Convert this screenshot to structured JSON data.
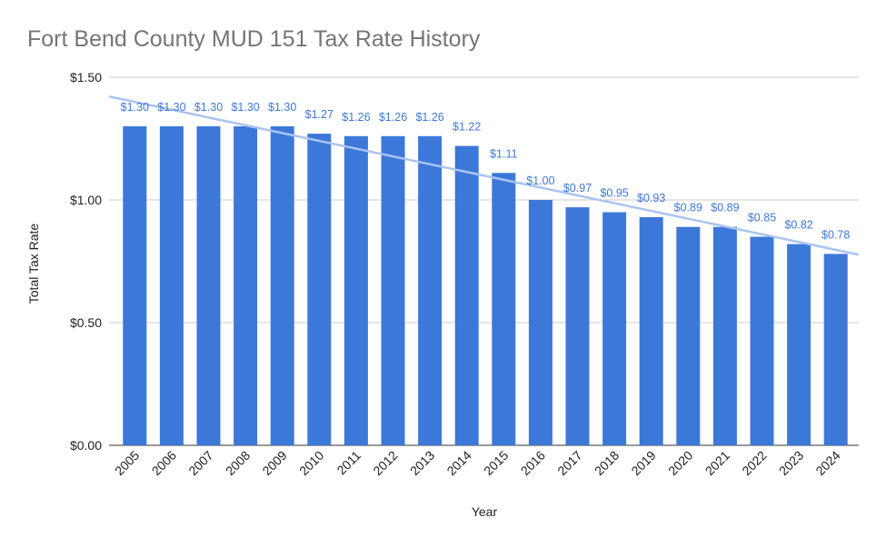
{
  "chart_data": {
    "type": "bar",
    "title": "Fort Bend County MUD 151 Tax Rate History",
    "xlabel": "Year",
    "ylabel": "Total Tax Rate",
    "ylim": [
      0,
      1.5
    ],
    "yticks": [
      0,
      0.5,
      1.0,
      1.5
    ],
    "ytick_labels": [
      "$0.00",
      "$0.50",
      "$1.00",
      "$1.50"
    ],
    "grid": true,
    "legend": "none",
    "trendline": "linear",
    "categories": [
      "2005",
      "2006",
      "2007",
      "2008",
      "2009",
      "2010",
      "2011",
      "2012",
      "2013",
      "2014",
      "2015",
      "2016",
      "2017",
      "2018",
      "2019",
      "2020",
      "2021",
      "2022",
      "2023",
      "2024"
    ],
    "values": [
      1.3,
      1.3,
      1.3,
      1.3,
      1.3,
      1.27,
      1.26,
      1.26,
      1.26,
      1.22,
      1.11,
      1.0,
      0.97,
      0.95,
      0.93,
      0.89,
      0.89,
      0.85,
      0.82,
      0.78
    ],
    "data_labels": [
      "$1.30",
      "$1.30",
      "$1.30",
      "$1.30",
      "$1.30",
      "$1.27",
      "$1.26",
      "$1.26",
      "$1.26",
      "$1.22",
      "$1.11",
      "$1.00",
      "$0.97",
      "$0.95",
      "$0.93",
      "$0.89",
      "$0.89",
      "$0.85",
      "$0.82",
      "$0.78"
    ],
    "colors": {
      "bar": "#3c78d8",
      "trendline": "#a9c4f0",
      "data_label": "#3c78d8",
      "title": "#757575",
      "grid": "#cccccc"
    }
  }
}
